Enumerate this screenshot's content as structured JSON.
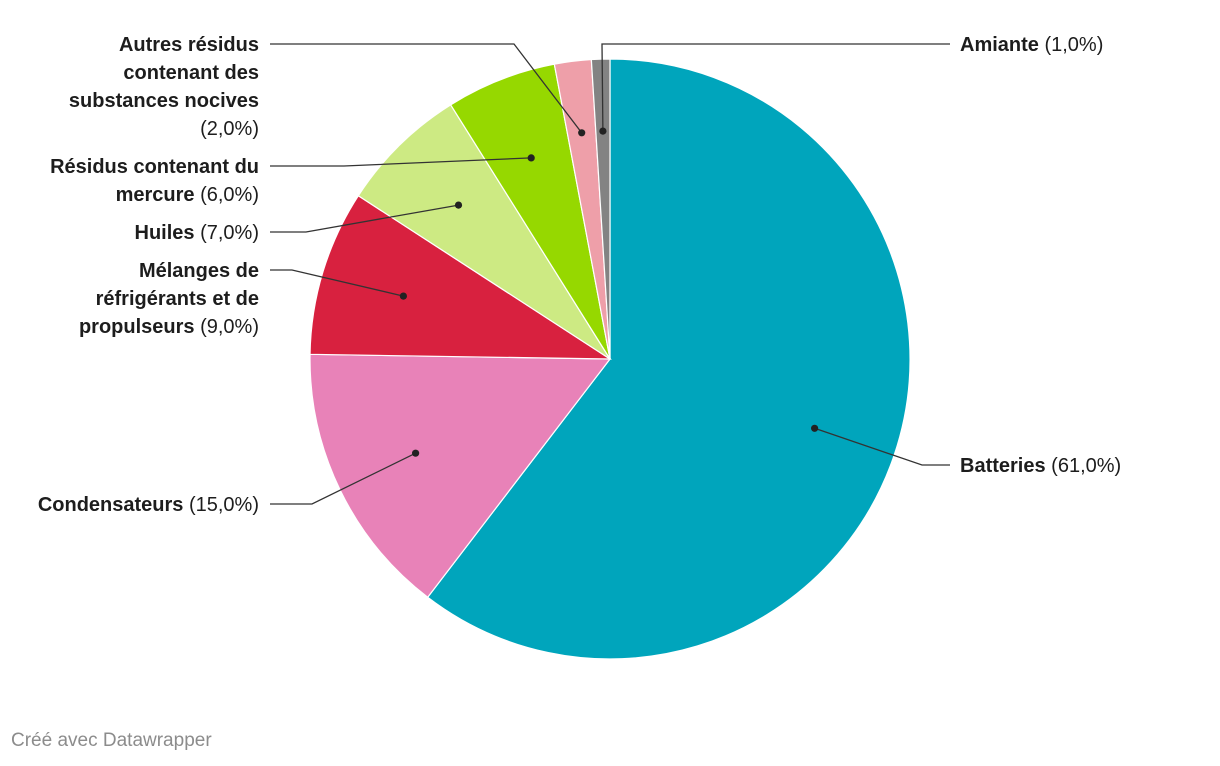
{
  "chart_data": {
    "type": "pie",
    "title": "",
    "slices": [
      {
        "name": "Batteries",
        "value": 61.0,
        "label": "(61,0%)",
        "color": "#00a5bc"
      },
      {
        "name": "Condensateurs",
        "value": 15.0,
        "label": "(15,0%)",
        "color": "#e882b8"
      },
      {
        "name": "Mélanges de réfrigérants et de propulseurs",
        "value": 9.0,
        "label": "(9,0%)",
        "color": "#d8213f"
      },
      {
        "name": "Huiles",
        "value": 7.0,
        "label": "(7,0%)",
        "color": "#cdea83"
      },
      {
        "name": "Résidus contenant du mercure",
        "value": 6.0,
        "label": "(6,0%)",
        "color": "#96d800"
      },
      {
        "name": "Autres résidus contenant des substances nocives",
        "value": 2.0,
        "label": "(2,0%)",
        "color": "#ee9fa9"
      },
      {
        "name": "Amiante",
        "value": 1.0,
        "label": "(1,0%)",
        "color": "#838383"
      }
    ],
    "legend": "none",
    "label_placement": "outside-with-leader-lines"
  },
  "footer": {
    "credit": "Créé avec Datawrapper"
  }
}
